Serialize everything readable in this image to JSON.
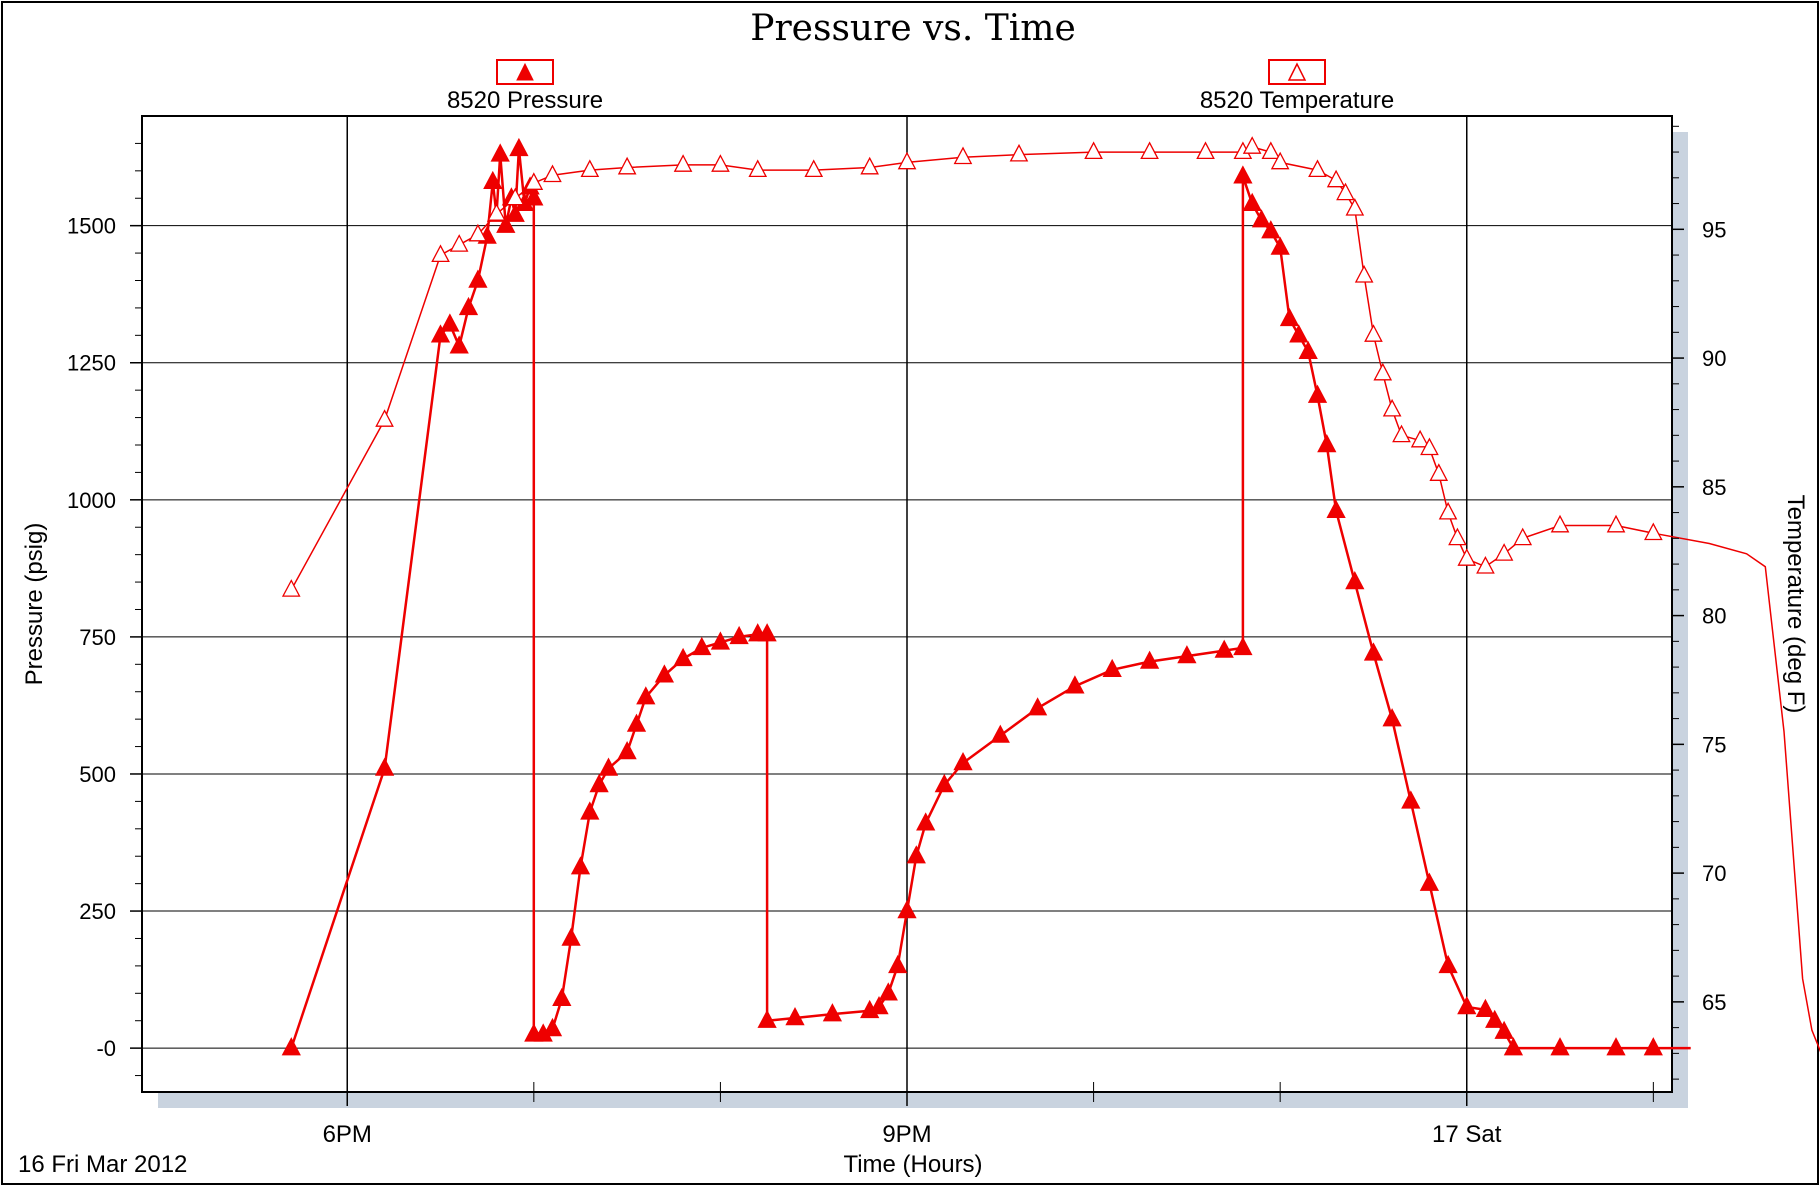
{
  "chart_data": {
    "type": "line",
    "title": "Pressure vs. Time",
    "xlabel": "Time (Hours)",
    "ylabel": "Pressure (psig)",
    "y2label": "Temperature (deg F)",
    "date_label": "16 Fri Mar 2012",
    "x_range_hours": [
      16.9,
      25.1
    ],
    "ylim": [
      -80,
      1700
    ],
    "y2lim": [
      61.5,
      99.4
    ],
    "x_ticks": [
      {
        "value": 18,
        "label": "6PM"
      },
      {
        "value": 21,
        "label": "9PM"
      },
      {
        "value": 24,
        "label": "17 Sat"
      }
    ],
    "x_minor_ticks": [
      19,
      20,
      22,
      23,
      25
    ],
    "y_ticks": [
      {
        "value": 0,
        "label": "-0"
      },
      {
        "value": 250,
        "label": "250"
      },
      {
        "value": 500,
        "label": "500"
      },
      {
        "value": 750,
        "label": "750"
      },
      {
        "value": 1000,
        "label": "1000"
      },
      {
        "value": 1250,
        "label": "1250"
      },
      {
        "value": 1500,
        "label": "1500"
      }
    ],
    "y2_ticks": [
      {
        "value": 65,
        "label": "65"
      },
      {
        "value": 70,
        "label": "70"
      },
      {
        "value": 75,
        "label": "75"
      },
      {
        "value": 80,
        "label": "80"
      },
      {
        "value": 85,
        "label": "85"
      },
      {
        "value": 90,
        "label": "90"
      },
      {
        "value": 95,
        "label": "95"
      }
    ],
    "grid": true,
    "legend_placement": "top",
    "series": [
      {
        "name": "8520 Pressure",
        "axis": "left",
        "marker": "filled-triangle",
        "color": "#ee0000",
        "points": [
          [
            17.7,
            0
          ],
          [
            18.2,
            510
          ],
          [
            18.5,
            1300
          ],
          [
            18.55,
            1320
          ],
          [
            18.6,
            1280
          ],
          [
            18.65,
            1350
          ],
          [
            18.7,
            1400
          ],
          [
            18.75,
            1480
          ],
          [
            18.78,
            1580
          ],
          [
            18.8,
            1520
          ],
          [
            18.82,
            1630
          ],
          [
            18.85,
            1500
          ],
          [
            18.88,
            1550
          ],
          [
            18.9,
            1520
          ],
          [
            18.92,
            1640
          ],
          [
            18.95,
            1540
          ],
          [
            18.98,
            1570
          ],
          [
            19.0,
            1550
          ],
          [
            19.0,
            25
          ],
          [
            19.05,
            25
          ],
          [
            19.1,
            35
          ],
          [
            19.15,
            90
          ],
          [
            19.2,
            200
          ],
          [
            19.25,
            330
          ],
          [
            19.3,
            430
          ],
          [
            19.35,
            480
          ],
          [
            19.4,
            510
          ],
          [
            19.5,
            540
          ],
          [
            19.55,
            590
          ],
          [
            19.6,
            640
          ],
          [
            19.7,
            680
          ],
          [
            19.8,
            710
          ],
          [
            19.9,
            730
          ],
          [
            20.0,
            740
          ],
          [
            20.1,
            750
          ],
          [
            20.2,
            755
          ],
          [
            20.25,
            755
          ],
          [
            20.25,
            50
          ],
          [
            20.4,
            55
          ],
          [
            20.6,
            62
          ],
          [
            20.8,
            68
          ],
          [
            20.85,
            75
          ],
          [
            20.9,
            100
          ],
          [
            20.95,
            150
          ],
          [
            21.0,
            250
          ],
          [
            21.05,
            350
          ],
          [
            21.1,
            410
          ],
          [
            21.2,
            480
          ],
          [
            21.3,
            520
          ],
          [
            21.5,
            570
          ],
          [
            21.7,
            620
          ],
          [
            21.9,
            660
          ],
          [
            22.1,
            690
          ],
          [
            22.3,
            705
          ],
          [
            22.5,
            715
          ],
          [
            22.7,
            725
          ],
          [
            22.8,
            730
          ],
          [
            22.8,
            1590
          ],
          [
            22.85,
            1540
          ],
          [
            22.9,
            1510
          ],
          [
            22.95,
            1490
          ],
          [
            23.0,
            1460
          ],
          [
            23.05,
            1330
          ],
          [
            23.1,
            1300
          ],
          [
            23.15,
            1270
          ],
          [
            23.2,
            1190
          ],
          [
            23.25,
            1100
          ],
          [
            23.3,
            980
          ],
          [
            23.4,
            850
          ],
          [
            23.5,
            720
          ],
          [
            23.6,
            600
          ],
          [
            23.7,
            450
          ],
          [
            23.8,
            300
          ],
          [
            23.9,
            150
          ],
          [
            24.0,
            75
          ],
          [
            24.1,
            70
          ],
          [
            24.15,
            50
          ],
          [
            24.2,
            30
          ],
          [
            24.25,
            0
          ],
          [
            24.5,
            0
          ],
          [
            24.8,
            0
          ],
          [
            25.0,
            0
          ],
          [
            25.2,
            0
          ]
        ]
      },
      {
        "name": "8520 Temperature",
        "axis": "right",
        "marker": "hollow-triangle",
        "color": "#ee0000",
        "points": [
          [
            17.7,
            81
          ],
          [
            18.2,
            87.6
          ],
          [
            18.5,
            94
          ],
          [
            18.6,
            94.4
          ],
          [
            18.7,
            94.8
          ],
          [
            18.8,
            95.6
          ],
          [
            18.9,
            96.2
          ],
          [
            19.0,
            96.8
          ],
          [
            19.1,
            97.1
          ],
          [
            19.3,
            97.3
          ],
          [
            19.5,
            97.4
          ],
          [
            19.8,
            97.5
          ],
          [
            20.0,
            97.5
          ],
          [
            20.2,
            97.3
          ],
          [
            20.5,
            97.3
          ],
          [
            20.8,
            97.4
          ],
          [
            21.0,
            97.6
          ],
          [
            21.3,
            97.8
          ],
          [
            21.6,
            97.9
          ],
          [
            22.0,
            98.0
          ],
          [
            22.3,
            98.0
          ],
          [
            22.6,
            98.0
          ],
          [
            22.8,
            98.0
          ],
          [
            22.85,
            98.2
          ],
          [
            22.95,
            98.0
          ],
          [
            23.0,
            97.6
          ],
          [
            23.2,
            97.3
          ],
          [
            23.3,
            96.9
          ],
          [
            23.35,
            96.4
          ],
          [
            23.4,
            95.8
          ],
          [
            23.45,
            93.2
          ],
          [
            23.5,
            90.9
          ],
          [
            23.55,
            89.4
          ],
          [
            23.6,
            88.0
          ],
          [
            23.65,
            87.0
          ],
          [
            23.75,
            86.8
          ],
          [
            23.8,
            86.5
          ],
          [
            23.85,
            85.5
          ],
          [
            23.9,
            84.0
          ],
          [
            23.95,
            83.0
          ],
          [
            24.0,
            82.2
          ],
          [
            24.1,
            81.9
          ],
          [
            24.2,
            82.4
          ],
          [
            24.3,
            83.0
          ],
          [
            24.5,
            83.5
          ],
          [
            24.8,
            83.5
          ],
          [
            25.0,
            83.2
          ],
          [
            25.3,
            82.8
          ],
          [
            25.5,
            82.4
          ],
          [
            25.6,
            81.9
          ],
          [
            25.7,
            75.5
          ],
          [
            25.8,
            65.9
          ],
          [
            25.85,
            63.9
          ],
          [
            25.9,
            63.0
          ],
          [
            26.0,
            62.9
          ],
          [
            26.1,
            63.1
          ],
          [
            26.2,
            63.4
          ],
          [
            26.25,
            63.7
          ]
        ]
      }
    ]
  }
}
